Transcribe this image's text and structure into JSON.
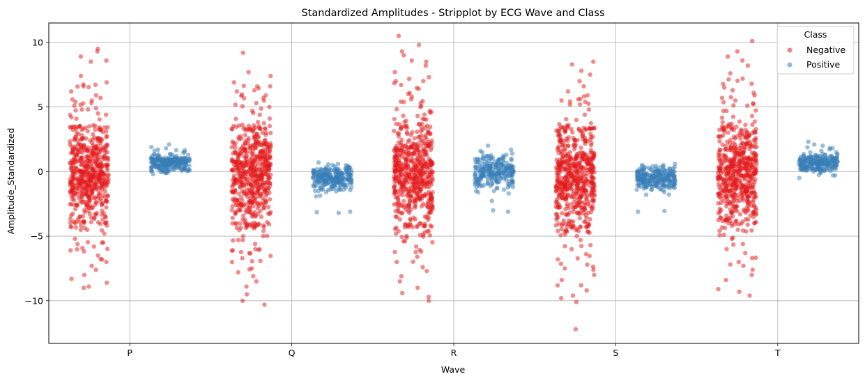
{
  "chart_data": {
    "type": "scatter",
    "subtype": "stripplot",
    "title": "Standardized Amplitudes - Stripplot by ECG Wave and Class",
    "xlabel": "Wave",
    "ylabel": "Amplitude_Standardized",
    "categories": [
      "P",
      "Q",
      "R",
      "S",
      "T"
    ],
    "ylim": [
      -13.3,
      11.5
    ],
    "yticks": [
      -10,
      -5,
      0,
      5,
      10
    ],
    "grid": true,
    "legend": {
      "title": "Class",
      "placement": "top-right",
      "entries": [
        "Negative",
        "Positive"
      ]
    },
    "series": [
      {
        "name": "Negative",
        "color": "#e41a1c",
        "x_offset": -0.25,
        "summary": [
          {
            "category": "P",
            "dense_min": -4,
            "dense_max": 3.5,
            "min": -9.0,
            "max": 9.5
          },
          {
            "category": "Q",
            "dense_min": -4.3,
            "dense_max": 3.5,
            "min": -10.3,
            "max": 9.2
          },
          {
            "category": "R",
            "dense_min": -4.3,
            "dense_max": 3.7,
            "min": -10.0,
            "max": 10.5
          },
          {
            "category": "S",
            "dense_min": -4.3,
            "dense_max": 3.4,
            "min": -12.2,
            "max": 8.5
          },
          {
            "category": "T",
            "dense_min": -4.0,
            "dense_max": 3.5,
            "min": -9.6,
            "max": 10.1
          }
        ],
        "outliers": {
          "P": [
            9.5,
            9.3,
            8.9,
            8.6,
            8.5,
            7.4,
            6.9,
            6.6,
            6.2,
            5.9,
            5.7,
            5.5,
            5.4,
            5.1,
            4.8,
            4.5,
            4.2,
            -4.5,
            -4.8,
            -5.2,
            -5.5,
            -5.8,
            -6.1,
            -6.5,
            -7.0,
            -7.3,
            -7.6,
            -8.0,
            -8.3,
            -8.6,
            -8.9,
            -9.0
          ],
          "Q": [
            9.2,
            7.7,
            7.4,
            6.9,
            6.6,
            6.3,
            5.9,
            5.7,
            5.5,
            5.3,
            5.0,
            4.7,
            4.4,
            4.1,
            -4.6,
            -5.0,
            -5.3,
            -5.6,
            -6.0,
            -6.3,
            -6.7,
            -7.0,
            -7.5,
            -7.8,
            -8.1,
            -8.5,
            -8.9,
            -9.5,
            -10.0,
            -10.3
          ],
          "R": [
            10.5,
            9.8,
            9.3,
            9.0,
            8.6,
            8.5,
            8.2,
            7.7,
            7.3,
            7.0,
            6.7,
            6.4,
            6.0,
            5.8,
            5.6,
            5.3,
            5.0,
            4.7,
            4.3,
            -4.6,
            -5.0,
            -5.4,
            -5.8,
            -6.2,
            -6.6,
            -7.0,
            -7.4,
            -7.7,
            -8.1,
            -8.5,
            -9.0,
            -9.4,
            -9.7,
            -10.0
          ],
          "S": [
            8.5,
            8.3,
            7.8,
            7.5,
            7.0,
            6.6,
            6.2,
            5.9,
            5.6,
            5.4,
            5.2,
            4.8,
            4.4,
            4.0,
            -4.6,
            -5.0,
            -5.3,
            -5.7,
            -6.0,
            -6.4,
            -6.8,
            -7.2,
            -7.6,
            -8.0,
            -8.4,
            -8.8,
            -9.2,
            -9.6,
            -9.8,
            -10.1,
            -12.2
          ],
          "T": [
            10.1,
            9.3,
            8.9,
            8.6,
            8.2,
            7.6,
            7.2,
            6.8,
            6.5,
            6.1,
            5.9,
            5.7,
            5.5,
            5.1,
            4.7,
            4.3,
            -4.5,
            -4.9,
            -5.2,
            -5.6,
            -6.0,
            -6.3,
            -6.7,
            -7.0,
            -7.3,
            -7.6,
            -8.0,
            -8.4,
            -9.1,
            -9.3,
            -9.6
          ]
        }
      },
      {
        "name": "Positive",
        "color": "#377eb8",
        "x_offset": 0.25,
        "summary": [
          {
            "category": "P",
            "dense_min": 0.0,
            "dense_max": 1.3,
            "min": -0.2,
            "max": 2.1
          },
          {
            "category": "Q",
            "dense_min": -1.4,
            "dense_max": 0.4,
            "min": -3.2,
            "max": 0.7
          },
          {
            "category": "R",
            "dense_min": -1.2,
            "dense_max": 1.2,
            "min": -3.1,
            "max": 2.0
          },
          {
            "category": "S",
            "dense_min": -1.3,
            "dense_max": 0.4,
            "min": -3.1,
            "max": 0.6
          },
          {
            "category": "T",
            "dense_min": 0.0,
            "dense_max": 1.3,
            "min": -0.5,
            "max": 2.3
          }
        ],
        "outliers": {
          "P": [
            2.1,
            1.9,
            1.8,
            1.7,
            1.6,
            1.5,
            -0.1,
            -0.2
          ],
          "Q": [
            0.7,
            0.6,
            0.5,
            -1.5,
            -1.6,
            -3.1,
            -3.15,
            -3.2
          ],
          "R": [
            2.0,
            1.7,
            1.5,
            1.4,
            -1.3,
            -1.4,
            -1.5,
            -1.6,
            -3.0,
            -3.1
          ],
          "S": [
            0.6,
            0.5,
            -1.4,
            -1.6,
            -1.8,
            -3.05,
            -3.1
          ],
          "T": [
            2.3,
            2.1,
            2.0,
            1.8,
            1.6,
            1.5,
            -0.3,
            -0.5
          ]
        }
      }
    ]
  }
}
